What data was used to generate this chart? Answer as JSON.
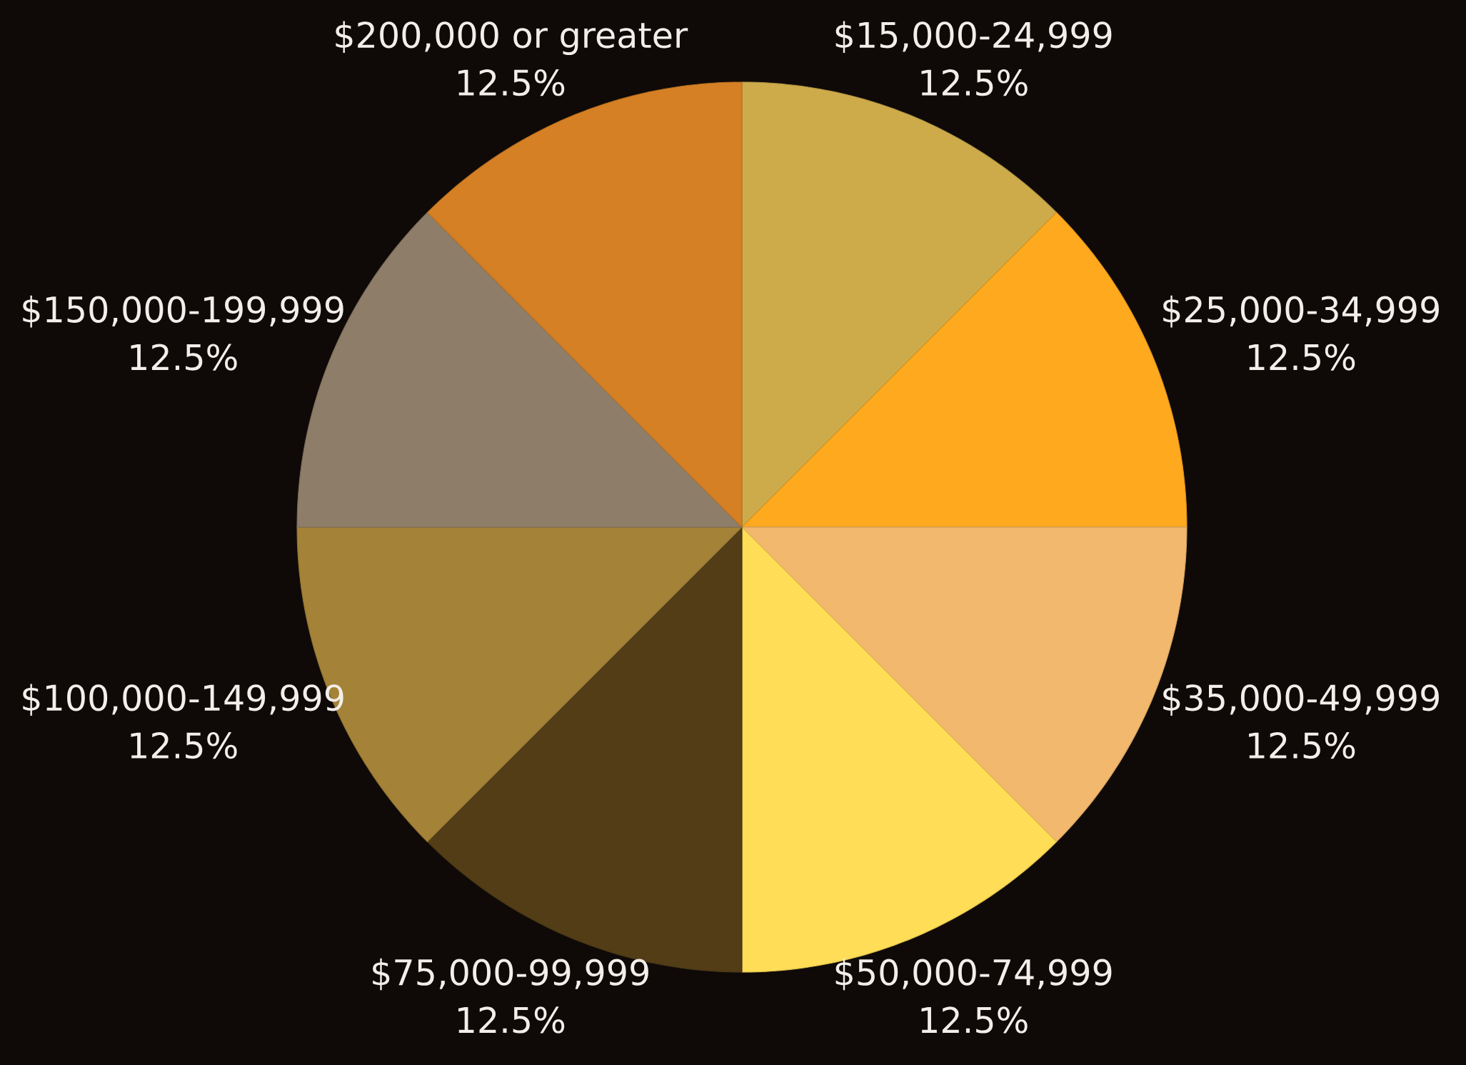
{
  "chart_data": {
    "type": "pie",
    "categories": [
      "$15,000-24,999",
      "$25,000-34,999",
      "$35,000-49,999",
      "$50,000-74,999",
      "$75,000-99,999",
      "$100,000-149,999",
      "$150,000-199,999",
      "$200,000 or greater"
    ],
    "values": [
      12.5,
      12.5,
      12.5,
      12.5,
      12.5,
      12.5,
      12.5,
      12.5
    ],
    "value_labels": [
      "12.5%",
      "12.5%",
      "12.5%",
      "12.5%",
      "12.5%",
      "12.5%",
      "12.5%",
      "12.5%"
    ],
    "colors": [
      "#cdab4b",
      "#ffa91f",
      "#f2b86d",
      "#ffdd57",
      "#523d16",
      "#a48338",
      "#8e7e69",
      "#d58024"
    ]
  }
}
